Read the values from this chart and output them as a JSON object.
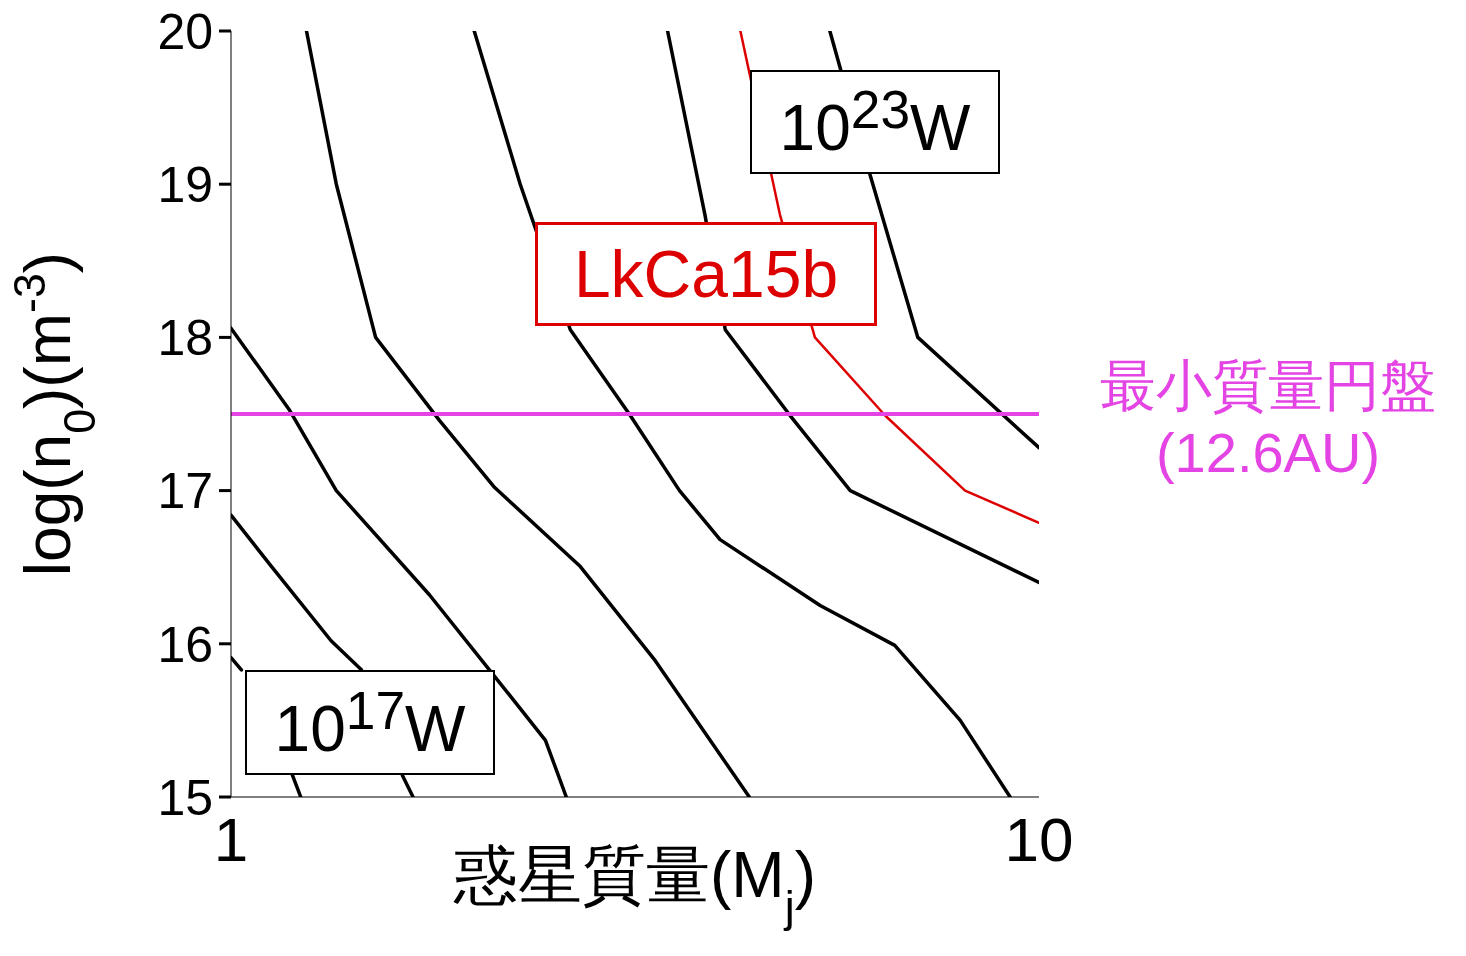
{
  "chart_data": {
    "type": "line",
    "xlabel": "惑星質量(M$_{j}$)",
    "ylabel": "log(n$_{0}$)(m$^{-3}$)",
    "log": "x",
    "xlim": [
      1,
      10
    ],
    "xticks": [
      1,
      10
    ],
    "ylim": [
      15,
      20
    ],
    "yticks": [
      15,
      16,
      17,
      18,
      19,
      20
    ],
    "annotations": [
      "10$^{17}$W",
      "10$^{23}$W"
    ],
    "ref_lines": [
      {
        "axis": "y",
        "value": 17.5,
        "label": "最小質量円盤\n(12.6AU)",
        "color": "#e444e4"
      }
    ],
    "series": [
      {
        "color": "#000000",
        "x": [
          1,
          1.03,
          1.12,
          1.19,
          1.22
        ],
        "values": [
          15.91,
          15.83,
          null,
          15.15,
          15.0
        ]
      },
      {
        "color": "#000000",
        "x": [
          1,
          1.12,
          1.33,
          1.45,
          1.53,
          1.63,
          1.68
        ],
        "values": [
          16.84,
          16.51,
          16.02,
          15.83,
          null,
          15.14,
          15.0
        ]
      },
      {
        "color": "#000000",
        "x": [
          1,
          1.18,
          1.35,
          1.76,
          2.14,
          2.45,
          2.6
        ],
        "values": [
          18.06,
          17.53,
          17.0,
          16.32,
          15.76,
          15.37,
          15.0
        ]
      },
      {
        "color": "#000000",
        "x": [
          1.24,
          1.35,
          1.51,
          1.81,
          2.12,
          2.7,
          3.35,
          4.38
        ],
        "values": [
          20,
          19.0,
          18.0,
          17.46,
          17.02,
          16.51,
          15.89,
          15.0
        ]
      },
      {
        "color": "#000000",
        "x": [
          2.0,
          2.28,
          2.63,
          3.12,
          3.59,
          4.03,
          5.36,
          6.63,
          7.99,
          9.21
        ],
        "values": [
          20,
          19.0,
          18.05,
          17.49,
          17.0,
          16.68,
          16.25,
          15.99,
          15.5,
          15.0
        ]
      },
      {
        "color": "#000000",
        "x": [
          3.47,
          3.86,
          4.09,
          4.92,
          5.84,
          10
        ],
        "values": [
          20,
          18.8,
          18.05,
          17.49,
          17.0,
          16.4
        ]
      },
      {
        "name": "LkCa15b",
        "color": "#dd0000",
        "x": [
          4.27,
          4.78,
          5.28,
          6.45,
          8.1,
          10
        ],
        "values": [
          20,
          18.8,
          18.0,
          17.49,
          17.0,
          16.79
        ]
      },
      {
        "color": "#000000",
        "x": [
          5.51,
          6.18,
          7.08,
          10
        ],
        "values": [
          20,
          19.06,
          18.0,
          17.28
        ]
      }
    ]
  }
}
